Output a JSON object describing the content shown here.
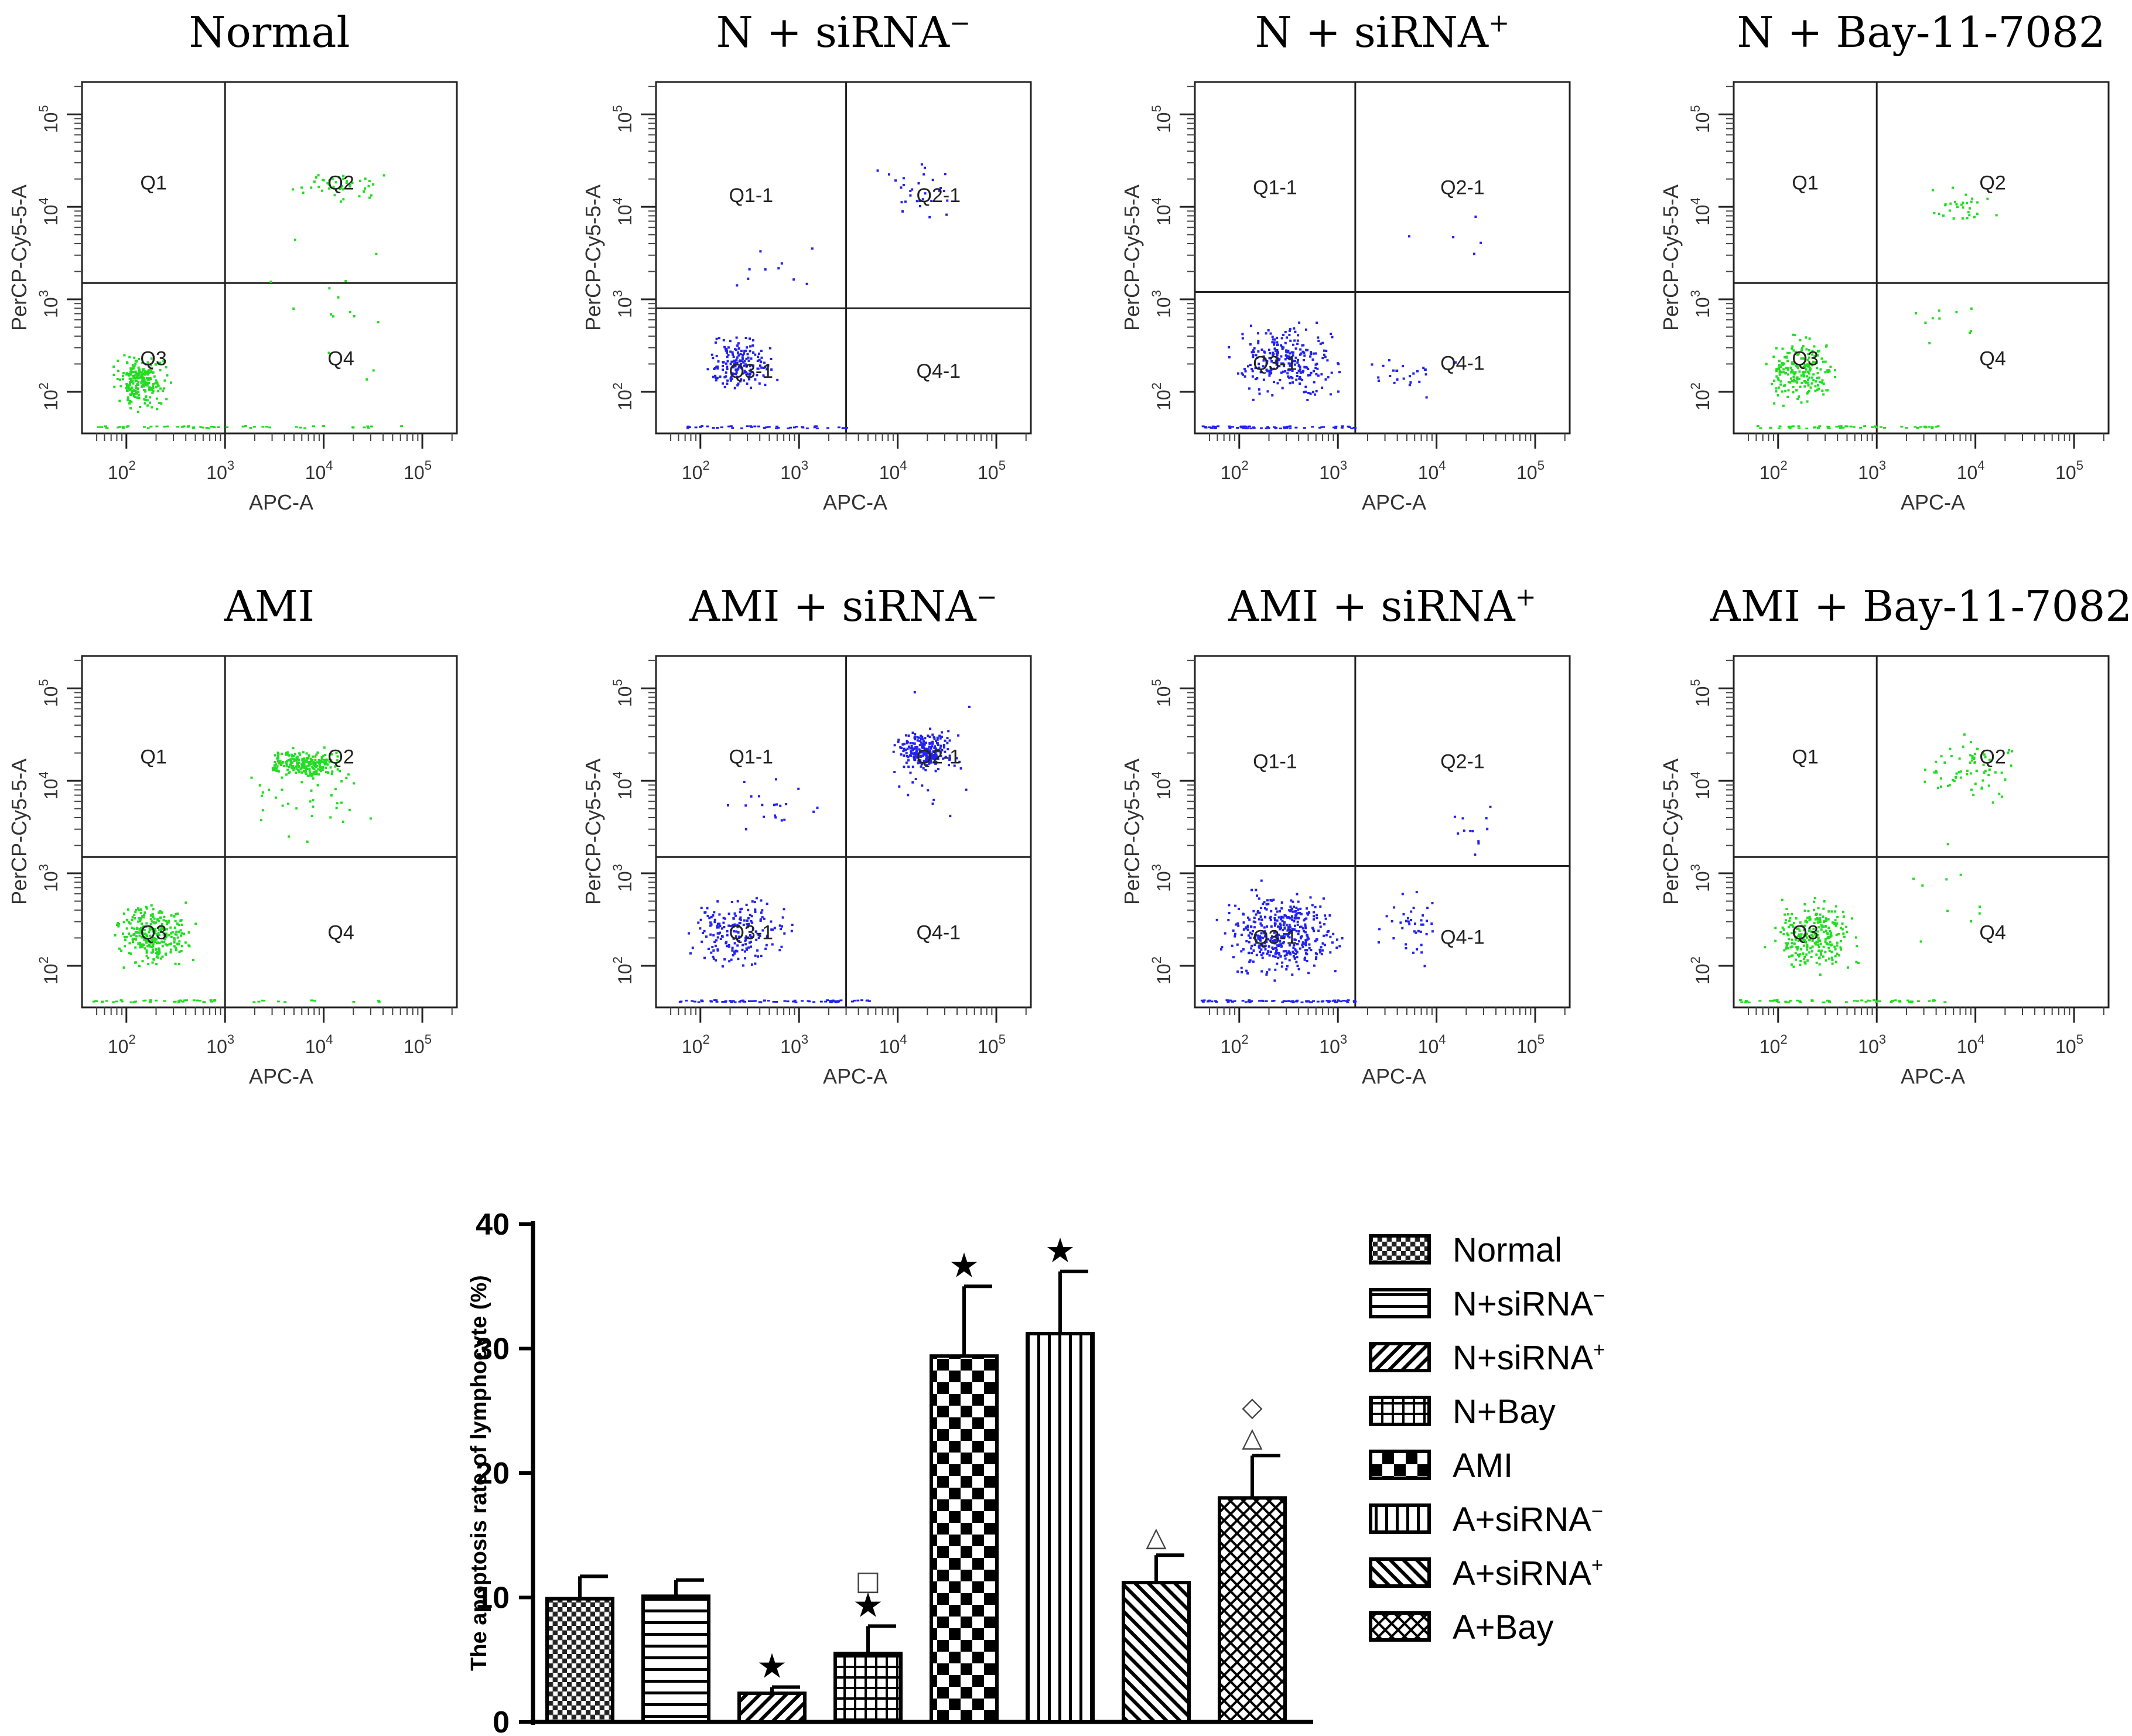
{
  "chart_data": [
    {
      "type": "scatter",
      "panel": "flow-normal",
      "title": "Normal",
      "xlabel": "APC-A",
      "ylabel": "PerCP-Cy5-5-A",
      "color": "#22dd22",
      "quadrants": [
        "Q1",
        "Q2",
        "Q3",
        "Q4"
      ],
      "xticks": [
        "10^2",
        "10^3",
        "10^4",
        "10^5"
      ],
      "yticks": [
        "10^2",
        "10^3",
        "10^4",
        "10^5"
      ],
      "gate": {
        "x": 1000,
        "y": 1500
      },
      "clusters": [
        {
          "x": [
            60,
            300
          ],
          "y": [
            60,
            300
          ],
          "n": 230
        },
        {
          "x": [
            4000,
            50000
          ],
          "y": [
            10000,
            30000
          ],
          "n": 45
        },
        {
          "x": [
            50,
            3000
          ],
          "y": [
            50,
            52
          ],
          "n": 40,
          "line": true
        },
        {
          "x": [
            3000,
            60000
          ],
          "y": [
            50,
            52
          ],
          "n": 12,
          "line": true
        },
        {
          "x": [
            2000,
            80000
          ],
          "y": [
            100,
            6000
          ],
          "n": 15
        }
      ]
    },
    {
      "type": "scatter",
      "panel": "flow-n-sirna-neg",
      "title": "N + siRNA",
      "title_sup": "−",
      "xlabel": "APC-A",
      "ylabel": "PerCP-Cy5-5-A",
      "color": "#2222ee",
      "quadrants": [
        "Q1-1",
        "Q2-1",
        "Q3-1",
        "Q4-1"
      ],
      "xticks": [
        "10^2",
        "10^3",
        "10^4",
        "10^5"
      ],
      "yticks": [
        "10^2",
        "10^3",
        "10^4",
        "10^5"
      ],
      "gate": {
        "x": 3000,
        "y": 800
      },
      "clusters": [
        {
          "x": [
            80,
            700
          ],
          "y": [
            80,
            500
          ],
          "n": 170
        },
        {
          "x": [
            5000,
            60000
          ],
          "y": [
            5000,
            40000
          ],
          "n": 30
        },
        {
          "x": [
            60,
            3000
          ],
          "y": [
            50,
            52
          ],
          "n": 45,
          "line": true
        },
        {
          "x": [
            100,
            3000
          ],
          "y": [
            1000,
            8000
          ],
          "n": 10
        }
      ]
    },
    {
      "type": "scatter",
      "panel": "flow-n-sirna-pos",
      "title": "N + siRNA",
      "title_sup": "+",
      "xlabel": "APC-A",
      "ylabel": "PerCP-Cy5-5-A",
      "color": "#2222ee",
      "quadrants": [
        "Q1-1",
        "Q2-1",
        "Q3-1",
        "Q4-1"
      ],
      "xticks": [
        "10^2",
        "10^3",
        "10^4",
        "10^5"
      ],
      "yticks": [
        "10^2",
        "10^3",
        "10^4",
        "10^5"
      ],
      "gate": {
        "x": 1500,
        "y": 1200
      },
      "clusters": [
        {
          "x": [
            60,
            1500
          ],
          "y": [
            70,
            700
          ],
          "n": 260
        },
        {
          "x": [
            40,
            1500
          ],
          "y": [
            50,
            52
          ],
          "n": 60,
          "line": true
        },
        {
          "x": [
            1500,
            20000
          ],
          "y": [
            70,
            400
          ],
          "n": 25
        },
        {
          "x": [
            2000,
            40000
          ],
          "y": [
            1500,
            20000
          ],
          "n": 5
        }
      ]
    },
    {
      "type": "scatter",
      "panel": "flow-n-bay",
      "title": "N + Bay-11-7082",
      "xlabel": "APC-A",
      "ylabel": "PerCP-Cy5-5-A",
      "color": "#22dd22",
      "quadrants": [
        "Q1",
        "Q2",
        "Q3",
        "Q4"
      ],
      "xticks": [
        "10^2",
        "10^3",
        "10^4",
        "10^5"
      ],
      "yticks": [
        "10^2",
        "10^3",
        "10^4",
        "10^5"
      ],
      "gate": {
        "x": 1000,
        "y": 1500
      },
      "clusters": [
        {
          "x": [
            60,
            500
          ],
          "y": [
            60,
            500
          ],
          "n": 200
        },
        {
          "x": [
            2000,
            20000
          ],
          "y": [
            5000,
            20000
          ],
          "n": 30
        },
        {
          "x": [
            50,
            5000
          ],
          "y": [
            50,
            52
          ],
          "n": 55,
          "line": true
        },
        {
          "x": [
            1000,
            20000
          ],
          "y": [
            100,
            3000
          ],
          "n": 10
        }
      ]
    },
    {
      "type": "scatter",
      "panel": "flow-ami",
      "title": "AMI",
      "xlabel": "APC-A",
      "ylabel": "PerCP-Cy5-5-A",
      "color": "#22dd22",
      "quadrants": [
        "Q1",
        "Q2",
        "Q3",
        "Q4"
      ],
      "xticks": [
        "10^2",
        "10^3",
        "10^4",
        "10^5"
      ],
      "yticks": [
        "10^2",
        "10^3",
        "10^4",
        "10^5"
      ],
      "gate": {
        "x": 1000,
        "y": 1500
      },
      "clusters": [
        {
          "x": [
            60,
            600
          ],
          "y": [
            80,
            600
          ],
          "n": 280
        },
        {
          "x": [
            2000,
            20000
          ],
          "y": [
            10000,
            25000
          ],
          "n": 220
        },
        {
          "x": [
            1000,
            50000
          ],
          "y": [
            1500,
            40000
          ],
          "n": 40
        },
        {
          "x": [
            40,
            800
          ],
          "y": [
            50,
            52
          ],
          "n": 40,
          "line": true
        },
        {
          "x": [
            1000,
            60000
          ],
          "y": [
            50,
            52
          ],
          "n": 12,
          "line": true
        }
      ]
    },
    {
      "type": "scatter",
      "panel": "flow-ami-sirna-neg",
      "title": "AMI + siRNA",
      "title_sup": "−",
      "xlabel": "APC-A",
      "ylabel": "PerCP-Cy5-5-A",
      "color": "#2222ee",
      "quadrants": [
        "Q1-1",
        "Q2-1",
        "Q3-1",
        "Q4-1"
      ],
      "xticks": [
        "10^2",
        "10^3",
        "10^4",
        "10^5"
      ],
      "yticks": [
        "10^2",
        "10^3",
        "10^4",
        "10^5"
      ],
      "gate": {
        "x": 3000,
        "y": 1500
      },
      "clusters": [
        {
          "x": [
            8000,
            40000
          ],
          "y": [
            12000,
            40000
          ],
          "n": 240
        },
        {
          "x": [
            60,
            1000
          ],
          "y": [
            70,
            800
          ],
          "n": 190
        },
        {
          "x": [
            50,
            5000
          ],
          "y": [
            50,
            52
          ],
          "n": 70,
          "line": true
        },
        {
          "x": [
            100,
            3000
          ],
          "y": [
            2000,
            15000
          ],
          "n": 20
        },
        {
          "x": [
            5000,
            100000
          ],
          "y": [
            2000,
            100000
          ],
          "n": 30
        }
      ]
    },
    {
      "type": "scatter",
      "panel": "flow-ami-sirna-pos",
      "title": "AMI + siRNA",
      "title_sup": "+",
      "xlabel": "APC-A",
      "ylabel": "PerCP-Cy5-5-A",
      "color": "#2222ee",
      "quadrants": [
        "Q1-1",
        "Q2-1",
        "Q3-1",
        "Q4-1"
      ],
      "xticks": [
        "10^2",
        "10^3",
        "10^4",
        "10^5"
      ],
      "yticks": [
        "10^2",
        "10^3",
        "10^4",
        "10^5"
      ],
      "gate": {
        "x": 1500,
        "y": 1200
      },
      "clusters": [
        {
          "x": [
            50,
            1500
          ],
          "y": [
            60,
            900
          ],
          "n": 420
        },
        {
          "x": [
            40,
            1500
          ],
          "y": [
            50,
            52
          ],
          "n": 70,
          "line": true
        },
        {
          "x": [
            1500,
            20000
          ],
          "y": [
            80,
            800
          ],
          "n": 40
        },
        {
          "x": [
            10000,
            40000
          ],
          "y": [
            1500,
            8000
          ],
          "n": 12
        }
      ]
    },
    {
      "type": "scatter",
      "panel": "flow-ami-bay",
      "title": "AMI + Bay-11-7082",
      "xlabel": "APC-A",
      "ylabel": "PerCP-Cy5-5-A",
      "color": "#22dd22",
      "quadrants": [
        "Q1",
        "Q2",
        "Q3",
        "Q4"
      ],
      "xticks": [
        "10^2",
        "10^3",
        "10^4",
        "10^5"
      ],
      "yticks": [
        "10^2",
        "10^3",
        "10^4",
        "10^5"
      ],
      "gate": {
        "x": 1000,
        "y": 1500
      },
      "clusters": [
        {
          "x": [
            60,
            800
          ],
          "y": [
            70,
            700
          ],
          "n": 260
        },
        {
          "x": [
            2000,
            50000
          ],
          "y": [
            5000,
            40000
          ],
          "n": 70
        },
        {
          "x": [
            40,
            5000
          ],
          "y": [
            50,
            52
          ],
          "n": 60,
          "line": true
        },
        {
          "x": [
            1000,
            30000
          ],
          "y": [
            100,
            4000
          ],
          "n": 10
        }
      ]
    },
    {
      "type": "bar",
      "panel": "apoptosis-bar-chart",
      "ylabel": "The apoptosis rate of lymphocyte (%)",
      "ylim": [
        0,
        40
      ],
      "yticks": [
        0,
        10,
        20,
        30,
        40
      ],
      "categories": [
        "Normal",
        "N+siRNA",
        "N+siRNA",
        "N+Bay",
        "AMI",
        "A+siRNA",
        "A+siRNA",
        "A+Bay"
      ],
      "superscripts": [
        "",
        "−",
        "+",
        "",
        "",
        "−",
        "+",
        ""
      ],
      "patterns": [
        "crosshatch",
        "hstripe",
        "diag",
        "grid",
        "checker",
        "vstripe",
        "diagback",
        "xcross"
      ],
      "values": [
        9.9,
        10.1,
        2.3,
        5.5,
        29.4,
        31.2,
        11.2,
        18.0
      ],
      "errors": [
        1.8,
        1.3,
        0.5,
        2.2,
        5.6,
        5.0,
        2.2,
        3.4
      ],
      "annotations": [
        [],
        [],
        [
          "★"
        ],
        [
          "★",
          "□"
        ],
        [
          "★"
        ],
        [
          "★"
        ],
        [
          "△"
        ],
        [
          "△",
          "◇"
        ]
      ],
      "legend_position": "right"
    }
  ]
}
